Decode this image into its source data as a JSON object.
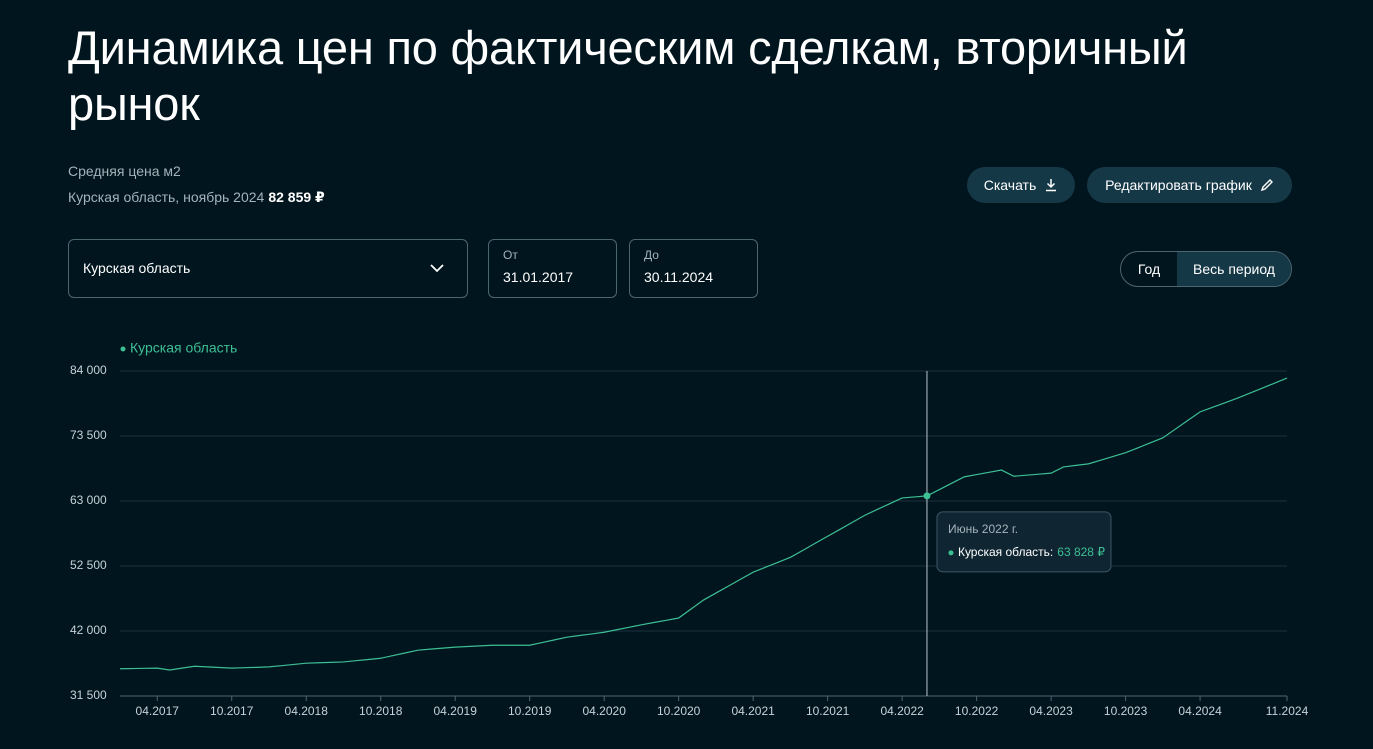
{
  "header": {
    "title": "Динамика цен по фактическим сделкам, вторичный рынок",
    "subtitle": "Средняя цена м2",
    "summary": "Курская область, ноябрь 2024",
    "summary_value": "82 859 ₽"
  },
  "actions": {
    "download": "Скачать",
    "edit": "Редактировать график"
  },
  "controls": {
    "region": "Курская область",
    "from_label": "От",
    "from_value": "31.01.2017",
    "to_label": "До",
    "to_value": "30.11.2024",
    "period_year": "Год",
    "period_all": "Весь период"
  },
  "chart_data": {
    "type": "line",
    "x": [
      "01.2017",
      "02.2017",
      "03.2017",
      "04.2017",
      "05.2017",
      "06.2017",
      "07.2017",
      "08.2017",
      "09.2017",
      "10.2017",
      "11.2017",
      "12.2017",
      "01.2018",
      "02.2018",
      "03.2018",
      "04.2018",
      "05.2018",
      "06.2018",
      "07.2018",
      "08.2018",
      "09.2018",
      "10.2018",
      "11.2018",
      "12.2018",
      "01.2019",
      "02.2019",
      "03.2019",
      "04.2019",
      "05.2019",
      "06.2019",
      "07.2019",
      "08.2019",
      "09.2019",
      "10.2019",
      "11.2019",
      "12.2019",
      "01.2020",
      "02.2020",
      "03.2020",
      "04.2020",
      "05.2020",
      "06.2020",
      "07.2020",
      "08.2020",
      "09.2020",
      "10.2020",
      "11.2020",
      "12.2020",
      "01.2021",
      "02.2021",
      "03.2021",
      "04.2021",
      "05.2021",
      "06.2021",
      "07.2021",
      "08.2021",
      "09.2021",
      "10.2021",
      "11.2021",
      "12.2021",
      "01.2022",
      "02.2022",
      "03.2022",
      "04.2022",
      "05.2022",
      "06.2022",
      "07.2022",
      "08.2022",
      "09.2022",
      "10.2022",
      "11.2022",
      "12.2022",
      "01.2023",
      "02.2023",
      "03.2023",
      "04.2023",
      "05.2023",
      "06.2023",
      "07.2023",
      "08.2023",
      "09.2023",
      "10.2023",
      "11.2023",
      "12.2023",
      "01.2024",
      "02.2024",
      "03.2024",
      "04.2024",
      "05.2024",
      "06.2024",
      "07.2024",
      "08.2024",
      "09.2024",
      "10.2024",
      "11.2024"
    ],
    "series": [
      {
        "name": "Курская область",
        "color": "#3dbf94",
        "values": [
          35900,
          35930,
          35970,
          36000,
          35700,
          36000,
          36300,
          36200,
          36100,
          36000,
          36070,
          36130,
          36200,
          36400,
          36600,
          36800,
          36870,
          36930,
          37000,
          37200,
          37400,
          37600,
          38030,
          38470,
          38900,
          39070,
          39230,
          39400,
          39500,
          39600,
          39700,
          39700,
          39700,
          39700,
          40130,
          40570,
          41000,
          41270,
          41530,
          41800,
          42200,
          42600,
          43000,
          43370,
          43730,
          44100,
          45550,
          47000,
          48130,
          49250,
          50380,
          51500,
          52300,
          53100,
          53900,
          55030,
          56170,
          57300,
          58430,
          59570,
          60700,
          61630,
          62570,
          63500,
          63660,
          63828,
          64850,
          65880,
          66900,
          67270,
          67630,
          68000,
          67000,
          67170,
          67330,
          67500,
          68500,
          68750,
          69000,
          69600,
          70200,
          70800,
          71600,
          72400,
          73200,
          74600,
          76000,
          77400,
          78130,
          78870,
          79600,
          80410,
          81230,
          82040,
          82859
        ]
      }
    ],
    "xticks": [
      "04.2017",
      "10.2017",
      "04.2018",
      "10.2018",
      "04.2019",
      "10.2019",
      "04.2020",
      "10.2020",
      "04.2021",
      "10.2021",
      "04.2022",
      "10.2022",
      "04.2023",
      "10.2023",
      "04.2024",
      "11.2024"
    ],
    "ylim": [
      31500,
      84000
    ],
    "yticks": [
      {
        "value": 31500,
        "label": "31 500"
      },
      {
        "value": 42000,
        "label": "42 000"
      },
      {
        "value": 52500,
        "label": "52 500"
      },
      {
        "value": 63000,
        "label": "63 000"
      },
      {
        "value": 73500,
        "label": "73 500"
      },
      {
        "value": 84000,
        "label": "84 000"
      }
    ],
    "grid": true,
    "annotations": [
      {
        "x": "06.2022",
        "text": "Июнь 2022 г.",
        "label": "Курская область:",
        "value_label": "63 828 ₽"
      }
    ]
  }
}
